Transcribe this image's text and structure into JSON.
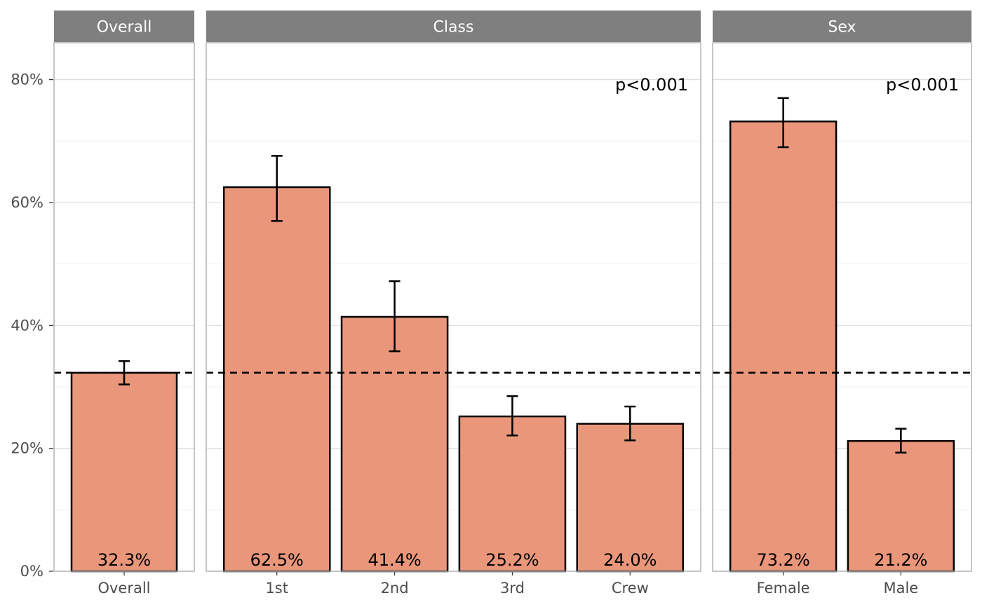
{
  "chart_data": {
    "type": "bar",
    "colors": {
      "bar_fill": "#E9967A",
      "bar_stroke": "#000000",
      "strip_fill": "#7F7F7F",
      "grid": "#EBEBEB",
      "panel_border": "#B3B3B3",
      "reference_line": "#000000"
    },
    "ylim": [
      0,
      0.86
    ],
    "y_ticks": [
      {
        "value": 0,
        "label": "0%"
      },
      {
        "value": 0.2,
        "label": "20%"
      },
      {
        "value": 0.4,
        "label": "40%"
      },
      {
        "value": 0.6,
        "label": "60%"
      },
      {
        "value": 0.8,
        "label": "80%"
      }
    ],
    "reference_line": {
      "value": 0.323,
      "style": "dashed"
    },
    "grid": true,
    "panels": [
      {
        "title": "Overall",
        "p_value": "",
        "categories": [
          "Overall"
        ],
        "values": [
          0.323
        ],
        "ci_low": [
          0.304
        ],
        "ci_high": [
          0.342
        ],
        "labels": [
          "32.3%"
        ]
      },
      {
        "title": "Class",
        "p_value": "p<0.001",
        "categories": [
          "1st",
          "2nd",
          "3rd",
          "Crew"
        ],
        "values": [
          0.625,
          0.414,
          0.252,
          0.24
        ],
        "ci_low": [
          0.57,
          0.358,
          0.221,
          0.213
        ],
        "ci_high": [
          0.676,
          0.472,
          0.285,
          0.268
        ],
        "labels": [
          "62.5%",
          "41.4%",
          "25.2%",
          "24.0%"
        ]
      },
      {
        "title": "Sex",
        "p_value": "p<0.001",
        "categories": [
          "Female",
          "Male"
        ],
        "values": [
          0.732,
          0.212
        ],
        "ci_low": [
          0.69,
          0.193
        ],
        "ci_high": [
          0.77,
          0.232
        ],
        "labels": [
          "73.2%",
          "21.2%"
        ]
      }
    ]
  }
}
